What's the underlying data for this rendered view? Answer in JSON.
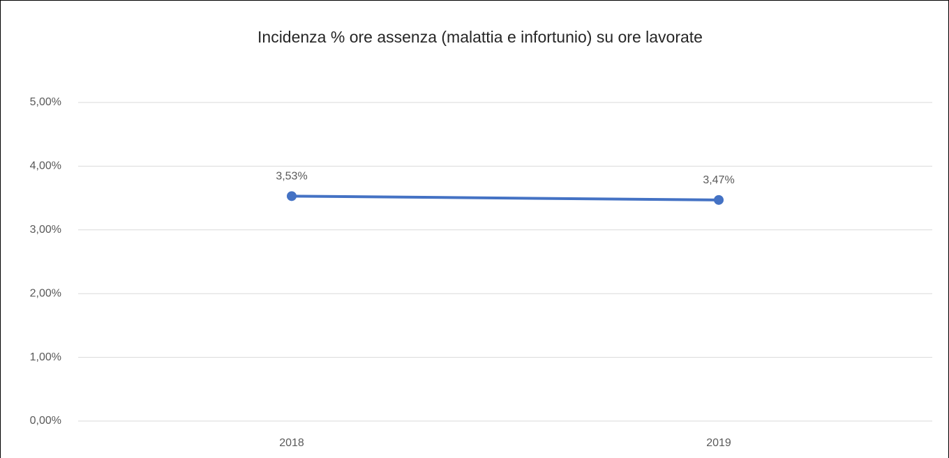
{
  "chart_data": {
    "type": "line",
    "title": "Incidenza % ore assenza (malattia e infortunio) su ore lavorate",
    "categories": [
      "2018",
      "2019"
    ],
    "values": [
      3.53,
      3.47
    ],
    "value_labels": [
      "3,53%",
      "3,47%"
    ],
    "color": "#4472c4",
    "ylim": [
      0,
      5
    ],
    "yticks": [
      {
        "value": 0,
        "label": "0,00%"
      },
      {
        "value": 1,
        "label": "1,00%"
      },
      {
        "value": 2,
        "label": "2,00%"
      },
      {
        "value": 3,
        "label": "3,00%"
      },
      {
        "value": 4,
        "label": "4,00%"
      },
      {
        "value": 5,
        "label": "5,00%"
      }
    ],
    "grid": true
  }
}
